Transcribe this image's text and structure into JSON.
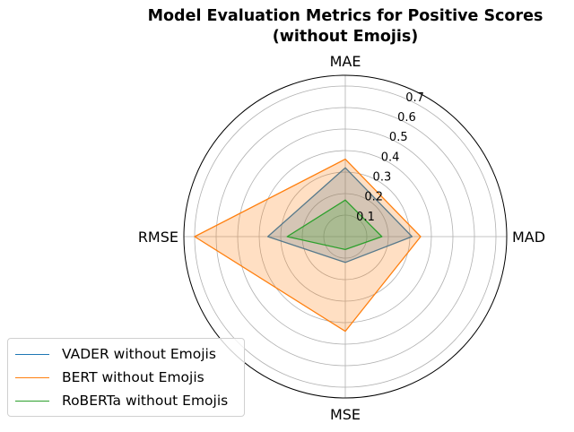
{
  "chart_data": {
    "type": "radar",
    "title": "Model Evaluation Metrics for Positive Scores\n(without Emojis)",
    "title_lines": [
      "Model Evaluation Metrics for Positive Scores",
      "(without Emojis)"
    ],
    "axes": [
      "MAE",
      "MAD",
      "MSE",
      "RMSE"
    ],
    "rlim": [
      0,
      0.75
    ],
    "rticks": [
      0.1,
      0.2,
      0.3,
      0.4,
      0.5,
      0.6,
      0.7
    ],
    "rtick_labels": [
      "0.1",
      "0.2",
      "0.3",
      "0.4",
      "0.5",
      "0.6",
      "0.7"
    ],
    "grid": true,
    "legend_position": "lower-left",
    "series": [
      {
        "name": "VADER without Emojis",
        "color": "#1f77b4",
        "fill": true,
        "values": [
          0.32,
          0.31,
          0.12,
          0.36
        ]
      },
      {
        "name": "BERT without Emojis",
        "color": "#ff7f0e",
        "fill": true,
        "values": [
          0.36,
          0.35,
          0.44,
          0.7
        ]
      },
      {
        "name": "RoBERTa without Emojis",
        "color": "#2ca02c",
        "fill": true,
        "values": [
          0.17,
          0.17,
          0.06,
          0.27
        ]
      }
    ]
  }
}
